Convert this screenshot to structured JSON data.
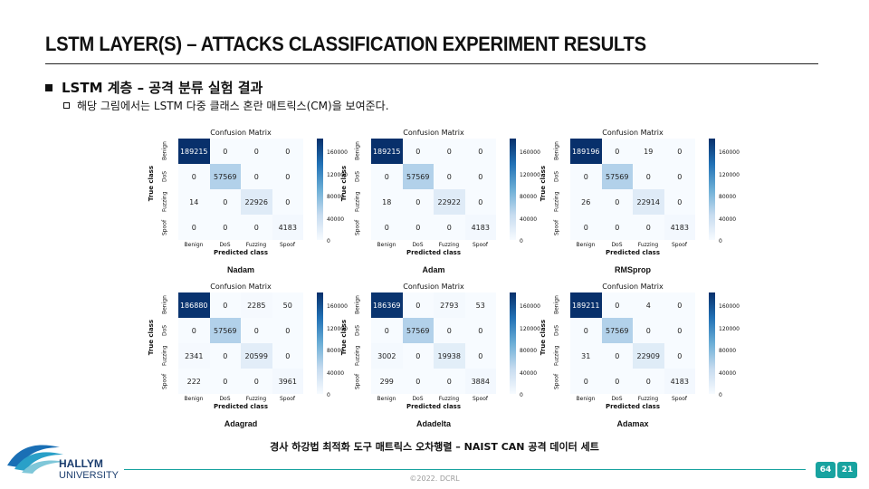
{
  "slide": {
    "title": "LSTM LAYER(S) – ATTACKS CLASSIFICATION EXPERIMENT RESULTS",
    "bullet1": "LSTM 계층 – 공격 분류 실험 결과",
    "bullet2": "해당 그림에서는 LSTM 다중 클래스 혼란 매트릭스(CM)을 보여준다.",
    "caption": "경사 하강법 최적화 도구 매트릭스 오차행렬 – NAIST CAN 공격 데이터 세트",
    "copyright": "©2022. DCRL",
    "university_line1": "HALLYM",
    "university_line2": "UNIVERSITY",
    "page_total": "64",
    "page_current": "21"
  },
  "cm_labels": {
    "title": "Confusion Matrix",
    "ylabel": "True class",
    "xlabel": "Predicted class",
    "classes": [
      "Benign",
      "DoS",
      "Fuzzing",
      "Spoof"
    ],
    "colorbar_ticks": [
      "160000",
      "120000",
      "80000",
      "40000",
      "0"
    ]
  },
  "chart_data": [
    {
      "type": "heatmap",
      "name": "Nadam",
      "matrix": [
        [
          189215,
          0,
          0,
          0
        ],
        [
          0,
          57569,
          0,
          0
        ],
        [
          14,
          0,
          22926,
          0
        ],
        [
          0,
          0,
          0,
          4183
        ]
      ]
    },
    {
      "type": "heatmap",
      "name": "Adam",
      "matrix": [
        [
          189215,
          0,
          0,
          0
        ],
        [
          0,
          57569,
          0,
          0
        ],
        [
          18,
          0,
          22922,
          0
        ],
        [
          0,
          0,
          0,
          4183
        ]
      ]
    },
    {
      "type": "heatmap",
      "name": "RMSprop",
      "matrix": [
        [
          189196,
          0,
          19,
          0
        ],
        [
          0,
          57569,
          0,
          0
        ],
        [
          26,
          0,
          22914,
          0
        ],
        [
          0,
          0,
          0,
          4183
        ]
      ]
    },
    {
      "type": "heatmap",
      "name": "Adagrad",
      "matrix": [
        [
          186880,
          0,
          2285,
          50
        ],
        [
          0,
          57569,
          0,
          0
        ],
        [
          2341,
          0,
          20599,
          0
        ],
        [
          222,
          0,
          0,
          3961
        ]
      ]
    },
    {
      "type": "heatmap",
      "name": "Adadelta",
      "matrix": [
        [
          186369,
          0,
          2793,
          53
        ],
        [
          0,
          57569,
          0,
          0
        ],
        [
          3002,
          0,
          19938,
          0
        ],
        [
          299,
          0,
          0,
          3884
        ]
      ]
    },
    {
      "type": "heatmap",
      "name": "Adamax",
      "matrix": [
        [
          189211,
          0,
          4,
          0
        ],
        [
          0,
          57569,
          0,
          0
        ],
        [
          31,
          0,
          22909,
          0
        ],
        [
          0,
          0,
          0,
          4183
        ]
      ]
    }
  ]
}
